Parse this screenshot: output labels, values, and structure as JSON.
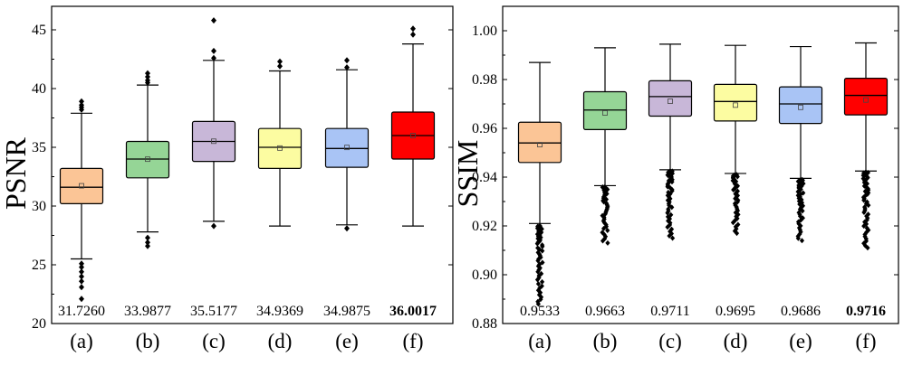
{
  "chart_data": [
    {
      "type": "box",
      "ylabel": "PSNR",
      "ylim": [
        20,
        47
      ],
      "yticks": [
        20,
        25,
        30,
        35,
        40,
        45
      ],
      "grid": false,
      "categories": [
        "(a)",
        "(b)",
        "(c)",
        "(d)",
        "(e)",
        "(f)"
      ],
      "colors": [
        "#FBC596",
        "#95D596",
        "#C8B7D8",
        "#FCFCA1",
        "#A9C4F5",
        "#FF0000"
      ],
      "series": [
        {
          "category": "(a)",
          "q1": 30.2,
          "median": 31.6,
          "q3": 33.2,
          "mean": 31.726,
          "whisker_low": 25.5,
          "whisker_high": 37.9,
          "outliers": [
            38.2,
            38.4,
            38.6,
            38.9,
            25.1,
            24.8,
            24.4,
            24.0,
            23.6,
            23.1,
            22.1
          ]
        },
        {
          "category": "(b)",
          "q1": 32.4,
          "median": 34.0,
          "q3": 35.5,
          "mean": 33.9877,
          "whisker_low": 27.8,
          "whisker_high": 40.3,
          "outliers": [
            40.5,
            40.7,
            41.0,
            41.3,
            27.3,
            26.9,
            26.6
          ]
        },
        {
          "category": "(c)",
          "q1": 33.8,
          "median": 35.5,
          "q3": 37.2,
          "mean": 35.5177,
          "whisker_low": 28.7,
          "whisker_high": 42.4,
          "outliers": [
            42.6,
            43.2,
            45.8,
            28.3
          ]
        },
        {
          "category": "(d)",
          "q1": 33.2,
          "median": 35.0,
          "q3": 36.6,
          "mean": 34.9369,
          "whisker_low": 28.3,
          "whisker_high": 41.5,
          "outliers": [
            41.9,
            42.3
          ]
        },
        {
          "category": "(e)",
          "q1": 33.3,
          "median": 34.9,
          "q3": 36.6,
          "mean": 34.9875,
          "whisker_low": 28.4,
          "whisker_high": 41.6,
          "outliers": [
            41.8,
            42.4,
            28.1
          ]
        },
        {
          "category": "(f)",
          "q1": 34.0,
          "median": 36.0,
          "q3": 38.0,
          "mean": 36.0017,
          "whisker_low": 28.3,
          "whisker_high": 43.8,
          "outliers": [
            44.6,
            45.1
          ]
        }
      ],
      "value_labels": [
        "31.7260",
        "33.9877",
        "35.5177",
        "34.9369",
        "34.9875",
        "36.0017"
      ],
      "bold_label_index": 5
    },
    {
      "type": "box",
      "ylabel": "SSIM",
      "ylim": [
        0.88,
        1.01
      ],
      "yticks": [
        0.88,
        0.9,
        0.92,
        0.94,
        0.96,
        0.98,
        1.0
      ],
      "ytick_labels": [
        "0.88",
        "0.90",
        "0.92",
        "0.94",
        "0.96",
        "0.98",
        "1.00"
      ],
      "grid": false,
      "categories": [
        "(a)",
        "(b)",
        "(c)",
        "(d)",
        "(e)",
        "(f)"
      ],
      "colors": [
        "#FBC596",
        "#95D596",
        "#C8B7D8",
        "#FCFCA1",
        "#A9C4F5",
        "#FF0000"
      ],
      "series": [
        {
          "category": "(a)",
          "q1": 0.946,
          "median": 0.954,
          "q3": 0.9625,
          "mean": 0.9533,
          "whisker_low": 0.921,
          "whisker_high": 0.987,
          "outlier_ranges": [
            [
              0.888,
              0.92
            ]
          ]
        },
        {
          "category": "(b)",
          "q1": 0.9595,
          "median": 0.9675,
          "q3": 0.975,
          "mean": 0.9663,
          "whisker_low": 0.9365,
          "whisker_high": 0.993,
          "outlier_ranges": [
            [
              0.913,
              0.936
            ]
          ]
        },
        {
          "category": "(c)",
          "q1": 0.965,
          "median": 0.973,
          "q3": 0.9795,
          "mean": 0.9711,
          "whisker_low": 0.943,
          "whisker_high": 0.9945,
          "outlier_ranges": [
            [
              0.915,
              0.9425
            ]
          ]
        },
        {
          "category": "(d)",
          "q1": 0.963,
          "median": 0.971,
          "q3": 0.978,
          "mean": 0.9695,
          "whisker_low": 0.9415,
          "whisker_high": 0.994,
          "outlier_ranges": [
            [
              0.917,
              0.941
            ]
          ]
        },
        {
          "category": "(e)",
          "q1": 0.962,
          "median": 0.97,
          "q3": 0.977,
          "mean": 0.9686,
          "whisker_low": 0.9395,
          "whisker_high": 0.9935,
          "outlier_ranges": [
            [
              0.914,
              0.939
            ]
          ]
        },
        {
          "category": "(f)",
          "q1": 0.9655,
          "median": 0.9735,
          "q3": 0.9805,
          "mean": 0.9716,
          "whisker_low": 0.9425,
          "whisker_high": 0.995,
          "outlier_ranges": [
            [
              0.911,
              0.942
            ]
          ]
        }
      ],
      "value_labels": [
        "0.9533",
        "0.9663",
        "0.9711",
        "0.9695",
        "0.9686",
        "0.9716"
      ],
      "bold_label_index": 5
    }
  ]
}
